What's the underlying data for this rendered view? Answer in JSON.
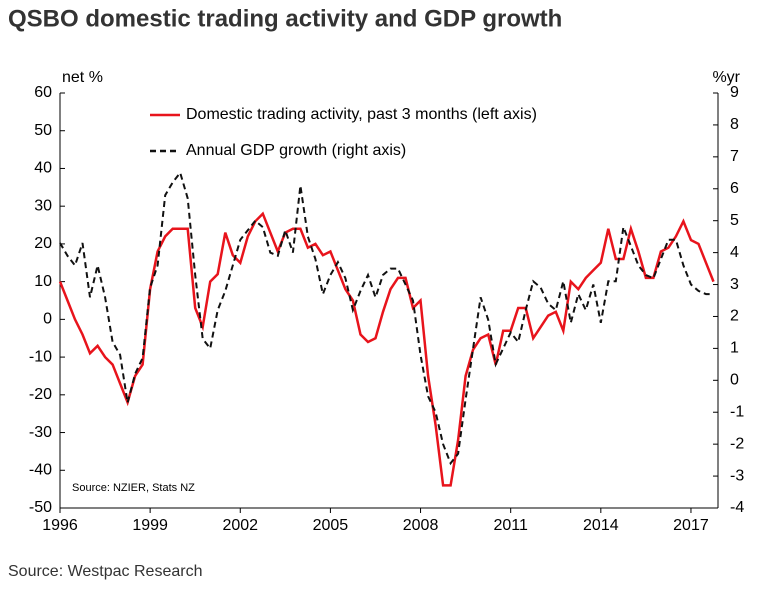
{
  "chart_data": {
    "type": "line",
    "title": "QSBO domestic trading activity and GDP growth",
    "ylabel": "net %",
    "y2label": "%yr",
    "annotation": "Source: NZIER, Stats NZ",
    "footer": "Source: Westpac Research",
    "legend": "top",
    "x": [
      1996,
      1996.25,
      1996.5,
      1996.75,
      1997,
      1997.25,
      1997.5,
      1997.75,
      1998,
      1998.25,
      1998.5,
      1998.75,
      1999,
      1999.25,
      1999.5,
      1999.75,
      2000,
      2000.25,
      2000.5,
      2000.75,
      2001,
      2001.25,
      2001.5,
      2001.75,
      2002,
      2002.25,
      2002.5,
      2002.75,
      2003,
      2003.25,
      2003.5,
      2003.75,
      2004,
      2004.25,
      2004.5,
      2004.75,
      2005,
      2005.25,
      2005.5,
      2005.75,
      2006,
      2006.25,
      2006.5,
      2006.75,
      2007,
      2007.25,
      2007.5,
      2007.75,
      2008,
      2008.25,
      2008.5,
      2008.75,
      2009,
      2009.25,
      2009.5,
      2009.75,
      2010,
      2010.25,
      2010.5,
      2010.75,
      2011,
      2011.25,
      2011.5,
      2011.75,
      2012,
      2012.25,
      2012.5,
      2012.75,
      2013,
      2013.25,
      2013.5,
      2013.75,
      2014,
      2014.25,
      2014.5,
      2014.75,
      2015,
      2015.25,
      2015.5,
      2015.75,
      2016,
      2016.25,
      2016.5,
      2016.75,
      2017,
      2017.25,
      2017.5,
      2017.75
    ],
    "series": [
      {
        "name": "Domestic trading activity, past 3 months (left axis)",
        "color": "#e8141c",
        "dash": false,
        "values": [
          10,
          5,
          0,
          -4,
          -9,
          -7,
          -10,
          -12,
          -17,
          -22,
          -15,
          -12,
          8,
          18,
          22,
          24,
          24,
          24,
          3,
          -2,
          10,
          12,
          23,
          17,
          15,
          22,
          26,
          28,
          23,
          18,
          23,
          24,
          24,
          19,
          20,
          17,
          18,
          13,
          8,
          5,
          -4,
          -6,
          -5,
          2,
          8,
          11,
          11,
          3,
          5,
          -15,
          -28,
          -44,
          -44,
          -32,
          -15,
          -8,
          -5,
          -4,
          -12,
          -3,
          -3,
          3,
          3,
          -5,
          -2,
          1,
          2,
          -3,
          10,
          8,
          11,
          13,
          15,
          24,
          16,
          16,
          24,
          18,
          11,
          11,
          18,
          19,
          22,
          26,
          21,
          20,
          15,
          10
        ]
      },
      {
        "name": "Annual GDP growth (right axis)",
        "color": "#111111",
        "dash": true,
        "axis": "y2",
        "values": [
          4.3,
          3.9,
          3.6,
          4.3,
          2.6,
          3.6,
          2.6,
          1.2,
          0.8,
          -0.7,
          0.2,
          0.7,
          2.9,
          3.6,
          5.8,
          6.2,
          6.5,
          5.7,
          3.3,
          1.3,
          1.0,
          2.2,
          2.8,
          3.6,
          4.4,
          4.7,
          5.0,
          4.8,
          4.0,
          3.9,
          4.7,
          4.0,
          6.1,
          4.5,
          3.8,
          2.7,
          3.3,
          3.7,
          3.2,
          2.2,
          2.8,
          3.3,
          2.6,
          3.3,
          3.5,
          3.5,
          3.0,
          2.5,
          0.8,
          -0.5,
          -1.0,
          -2.0,
          -2.6,
          -2.3,
          -0.6,
          1.0,
          2.6,
          1.9,
          0.5,
          1.0,
          1.5,
          1.2,
          2.2,
          3.1,
          2.9,
          2.4,
          2.2,
          3.1,
          1.8,
          2.7,
          2.2,
          3.0,
          1.8,
          3.1,
          3.1,
          4.8,
          4.2,
          3.6,
          3.3,
          3.2,
          3.8,
          4.4,
          4.4,
          3.6,
          3.0,
          2.8,
          2.7,
          2.7
        ]
      }
    ],
    "xlim": [
      1996,
      2017.9
    ],
    "xticks": [
      1996,
      1999,
      2002,
      2005,
      2008,
      2011,
      2014,
      2017
    ],
    "ylim": [
      -50,
      60
    ],
    "yticks": [
      -50,
      -40,
      -30,
      -20,
      -10,
      0,
      10,
      20,
      30,
      40,
      50,
      60
    ],
    "y2lim": [
      -4,
      9
    ],
    "y2ticks": [
      -4,
      -3,
      -2,
      -1,
      0,
      1,
      2,
      3,
      4,
      5,
      6,
      7,
      8,
      9
    ]
  }
}
